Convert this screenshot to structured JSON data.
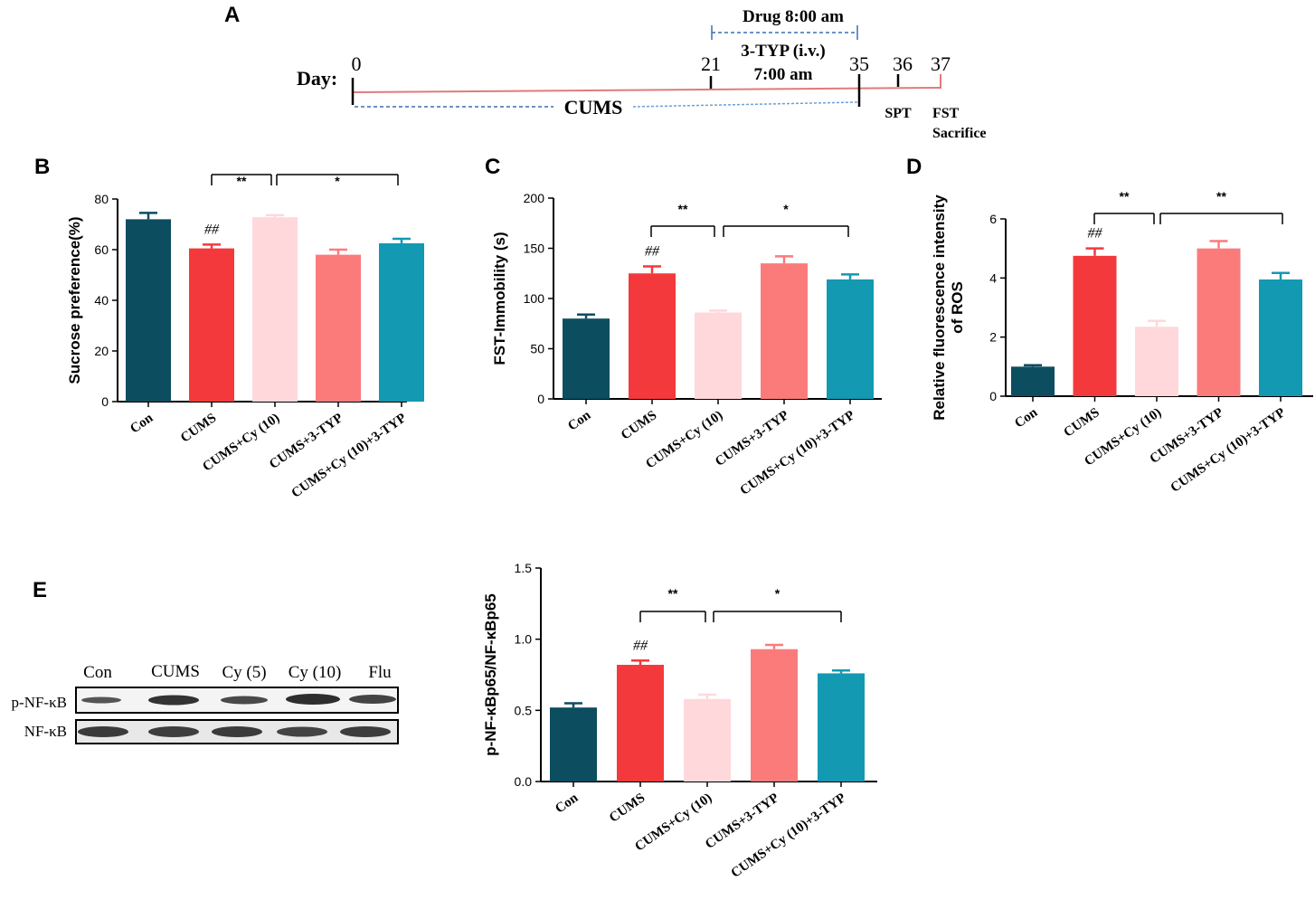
{
  "figure": {
    "panel_a": {
      "letter": "A",
      "day_label": "Day:",
      "day_ticks": [
        "0",
        "21",
        "35",
        "36",
        "37"
      ],
      "drug_label": "Drug 8:00 am",
      "typ_label_line1": "3-TYP (i.v.)",
      "typ_label_line2": "7:00 am",
      "cums_label": "CUMS",
      "spt_label": "SPT",
      "fst_label": "FST",
      "sacrifice_label": "Sacrifice"
    },
    "panel_e": {
      "letter": "E",
      "blot_lanes": [
        "Con",
        "CUMS",
        "Cy (5)",
        "Cy (10)",
        "Flu"
      ],
      "blot_rows": [
        "p-NF-κB",
        "NF-κB"
      ]
    }
  },
  "chart_data": [
    {
      "id": "B",
      "type": "bar",
      "letter": "B",
      "categories": [
        "Con",
        "CUMS",
        "CUMS+Cy (10)",
        "CUMS+3-TYP",
        "CUMS+Cy (10)+3-TYP"
      ],
      "values": [
        72,
        60.5,
        72.8,
        58,
        62.5
      ],
      "errors": [
        2.5,
        1.5,
        0.8,
        2,
        1.8
      ],
      "colors": [
        "#0c4d60",
        "#f4393c",
        "#ffd8db",
        "#fb7b7b",
        "#1399b2"
      ],
      "ylabel": "Sucrose preference(%)",
      "ylim": [
        0,
        80
      ],
      "yticks": [
        "0",
        "20",
        "40",
        "60",
        "80"
      ],
      "sig_labels": [
        "**",
        "*"
      ],
      "hash_label": "##"
    },
    {
      "id": "C",
      "type": "bar",
      "letter": "C",
      "categories": [
        "Con",
        "CUMS",
        "CUMS+Cy (10)",
        "CUMS+3-TYP",
        "CUMS+Cy (10)+3-TYP"
      ],
      "values": [
        80,
        125,
        86,
        135,
        119
      ],
      "errors": [
        4,
        7,
        2,
        7,
        5
      ],
      "colors": [
        "#0c4d60",
        "#f4393c",
        "#ffd8db",
        "#fb7b7b",
        "#1399b2"
      ],
      "ylabel": "FST-Immobility (s)",
      "ylim": [
        0,
        200
      ],
      "yticks": [
        "0",
        "50",
        "100",
        "150",
        "200"
      ],
      "sig_labels": [
        "**",
        "*"
      ],
      "hash_label": "##"
    },
    {
      "id": "D",
      "type": "bar",
      "letter": "D",
      "categories": [
        "Con",
        "CUMS",
        "CUMS+Cy (10)",
        "CUMS+3-TYP",
        "CUMS+Cy (10)+3-TYP"
      ],
      "values": [
        1.0,
        4.75,
        2.35,
        5.0,
        3.95
      ],
      "errors": [
        0.05,
        0.25,
        0.2,
        0.25,
        0.22
      ],
      "colors": [
        "#0c4d60",
        "#f4393c",
        "#ffd8db",
        "#fb7b7b",
        "#1399b2"
      ],
      "ylabel_line1": "Relative fluorescence intensity",
      "ylabel_line2": "of ROS",
      "ylim": [
        0,
        6
      ],
      "yticks": [
        "0",
        "2",
        "4",
        "6"
      ],
      "sig_labels": [
        "**",
        "**"
      ],
      "hash_label": "##"
    },
    {
      "id": "E",
      "type": "bar",
      "letter": "E",
      "categories": [
        "Con",
        "CUMS",
        "CUMS+Cy (10)",
        "CUMS+3-TYP",
        "CUMS+Cy (10)+3-TYP"
      ],
      "values": [
        0.52,
        0.82,
        0.58,
        0.93,
        0.76
      ],
      "errors": [
        0.03,
        0.03,
        0.03,
        0.03,
        0.02
      ],
      "colors": [
        "#0c4d60",
        "#f4393c",
        "#ffd8db",
        "#fb7b7b",
        "#1399b2"
      ],
      "ylabel": "p-NF-κBp65/NF-κBp65",
      "ylim": [
        0,
        1.5
      ],
      "yticks": [
        "0.0",
        "0.5",
        "1.0",
        "1.5"
      ],
      "sig_labels": [
        "**",
        "*"
      ],
      "hash_label": "##"
    }
  ]
}
